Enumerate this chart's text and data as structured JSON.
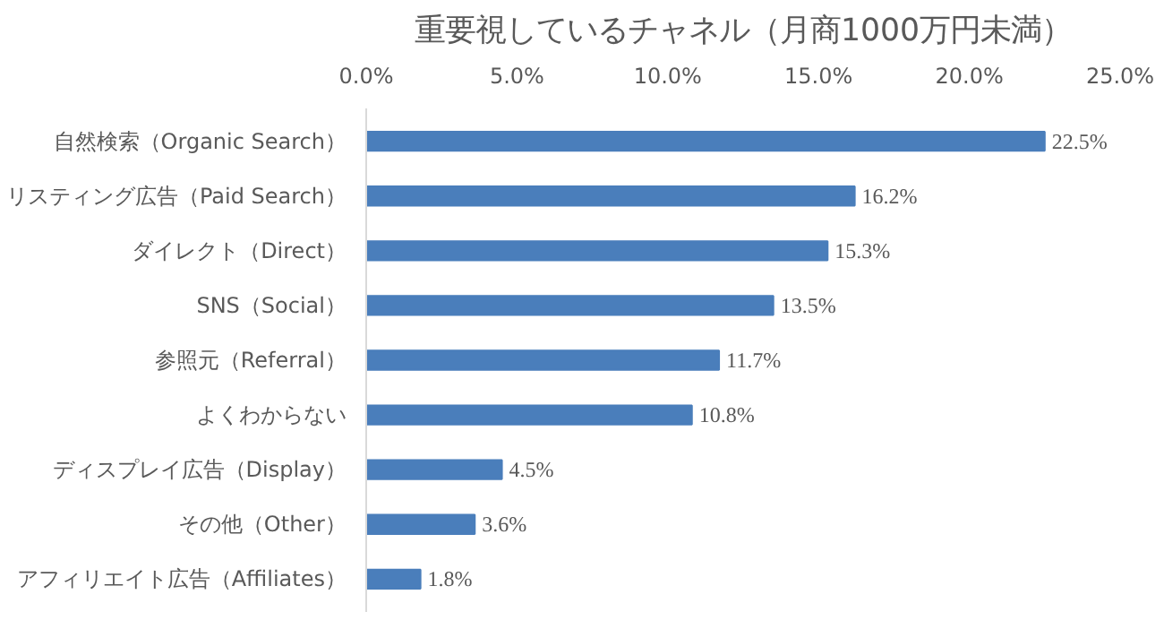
{
  "chart_data": {
    "type": "bar",
    "orientation": "horizontal",
    "title": "重要視しているチャネル（月商1000万円未満）",
    "categories": [
      "自然検索（Organic Search）",
      "リスティング広告（Paid Search）",
      "ダイレクト（Direct）",
      "SNS（Social）",
      "参照元（Referral）",
      "よくわからない",
      "ディスプレイ広告（Display）",
      "その他（Other）",
      "アフィリエイト広告（Affiliates）"
    ],
    "values": [
      22.5,
      16.2,
      15.3,
      13.5,
      11.7,
      10.8,
      4.5,
      3.6,
      1.8
    ],
    "value_labels": [
      "22.5%",
      "16.2%",
      "15.3%",
      "13.5%",
      "11.7%",
      "10.8%",
      "4.5%",
      "3.6%",
      "1.8%"
    ],
    "color": "#4a7ebb",
    "xlim": [
      0,
      25
    ],
    "xticks": [
      {
        "value": 0,
        "label": "0.0%"
      },
      {
        "value": 5,
        "label": "5.0%"
      },
      {
        "value": 10,
        "label": "10.0%"
      },
      {
        "value": 15,
        "label": "15.0%"
      },
      {
        "value": 20,
        "label": "20.0%"
      },
      {
        "value": 25,
        "label": "25.0%"
      }
    ],
    "grid": false
  }
}
